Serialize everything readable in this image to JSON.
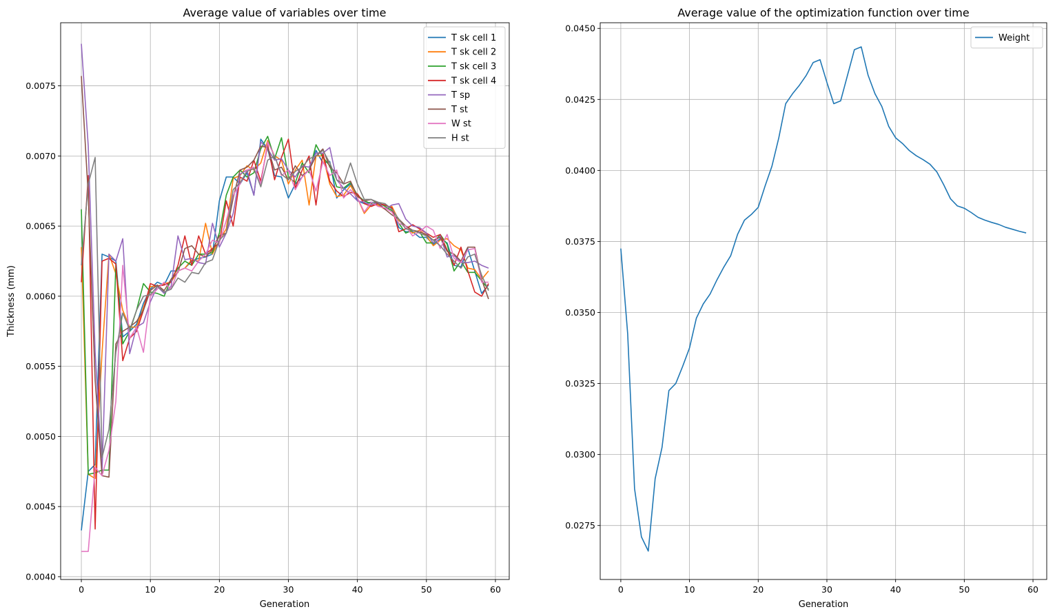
{
  "chart_data": [
    {
      "type": "line",
      "title": "Average value of variables over time",
      "xlabel": "Generation",
      "ylabel": "Thickness (mm)",
      "xlim": [
        -3,
        62
      ],
      "ylim": [
        0.00398,
        0.00795
      ],
      "xticks": [
        0,
        10,
        20,
        30,
        40,
        50,
        60
      ],
      "yticks": [
        0.004,
        0.0045,
        0.005,
        0.0055,
        0.006,
        0.0065,
        0.007,
        0.0075
      ],
      "ytick_labels": [
        "0.0040",
        "0.0045",
        "0.0050",
        "0.0055",
        "0.0060",
        "0.0065",
        "0.0070",
        "0.0075"
      ],
      "grid": true,
      "legend_position": "upper right",
      "series": [
        {
          "name": "T sk cell 1",
          "color": "#1f77b4",
          "values": [
            0.00433,
            0.00475,
            0.0048,
            0.0063,
            0.00628,
            0.00625,
            0.00571,
            0.00575,
            0.0058,
            0.00595,
            0.00605,
            0.0061,
            0.00608,
            0.00618,
            0.00618,
            0.0062,
            0.00625,
            0.00627,
            0.00628,
            0.0063,
            0.00668,
            0.00685,
            0.00685,
            0.0068,
            0.00688,
            0.00672,
            0.00712,
            0.00705,
            0.00686,
            0.00685,
            0.0067,
            0.0068,
            0.00685,
            0.0069,
            0.00704,
            0.00695,
            0.00696,
            0.0067,
            0.00676,
            0.0068,
            0.00668,
            0.00666,
            0.00667,
            0.00666,
            0.00665,
            0.00663,
            0.00649,
            0.00646,
            0.00646,
            0.00642,
            0.00642,
            0.00637,
            0.00641,
            0.00638,
            0.00622,
            0.00621,
            0.00634,
            0.00618,
            0.00602,
            0.00608
          ]
        },
        {
          "name": "T sk cell 2",
          "color": "#ff7f0e",
          "values": [
            0.00635,
            0.00473,
            0.0047,
            0.0056,
            0.0063,
            0.00616,
            0.0059,
            0.00578,
            0.00578,
            0.00592,
            0.00607,
            0.00607,
            0.00609,
            0.0061,
            0.00618,
            0.0062,
            0.00626,
            0.00625,
            0.00652,
            0.0063,
            0.0064,
            0.00648,
            0.00684,
            0.00686,
            0.00693,
            0.0069,
            0.00695,
            0.00711,
            0.007,
            0.00697,
            0.0068,
            0.0069,
            0.00697,
            0.00665,
            0.007,
            0.007,
            0.0068,
            0.00671,
            0.00672,
            0.00679,
            0.0067,
            0.00659,
            0.00665,
            0.00665,
            0.00662,
            0.00664,
            0.00654,
            0.0065,
            0.00645,
            0.00647,
            0.00643,
            0.00636,
            0.0064,
            0.00641,
            0.00636,
            0.00633,
            0.0062,
            0.00619,
            0.00612,
            0.00618
          ]
        },
        {
          "name": "T sk cell 3",
          "color": "#2ca02c",
          "values": [
            0.00662,
            0.00473,
            0.00474,
            0.00476,
            0.00476,
            0.00623,
            0.00566,
            0.00575,
            0.0059,
            0.00609,
            0.00603,
            0.00602,
            0.006,
            0.00612,
            0.0062,
            0.00625,
            0.00622,
            0.0063,
            0.0063,
            0.00631,
            0.00645,
            0.00672,
            0.00685,
            0.0069,
            0.00685,
            0.00688,
            0.00705,
            0.00714,
            0.00698,
            0.00713,
            0.00685,
            0.00681,
            0.00695,
            0.00688,
            0.00708,
            0.00699,
            0.00693,
            0.00678,
            0.00677,
            0.00681,
            0.00672,
            0.00668,
            0.00666,
            0.00667,
            0.00664,
            0.00661,
            0.00652,
            0.00645,
            0.00647,
            0.00646,
            0.00638,
            0.00638,
            0.00644,
            0.00637,
            0.00618,
            0.00625,
            0.00617,
            0.00617,
            0.00611,
            0.00605
          ]
        },
        {
          "name": "T sk cell 4",
          "color": "#d62728",
          "values": [
            0.0061,
            0.00686,
            0.00434,
            0.00625,
            0.00627,
            0.00623,
            0.00554,
            0.0057,
            0.00575,
            0.0059,
            0.00609,
            0.00607,
            0.00608,
            0.0061,
            0.00622,
            0.00643,
            0.00622,
            0.00643,
            0.0063,
            0.00634,
            0.00638,
            0.00668,
            0.0065,
            0.00685,
            0.00682,
            0.00697,
            0.00682,
            0.00708,
            0.00683,
            0.00699,
            0.00712,
            0.00677,
            0.0069,
            0.007,
            0.00665,
            0.00702,
            0.00682,
            0.00675,
            0.00671,
            0.00674,
            0.00673,
            0.00666,
            0.00664,
            0.00666,
            0.00665,
            0.00663,
            0.00646,
            0.00648,
            0.00651,
            0.00648,
            0.00645,
            0.00642,
            0.00644,
            0.00633,
            0.00622,
            0.00635,
            0.00618,
            0.00603,
            0.006,
            0.00609
          ]
        },
        {
          "name": "T sp",
          "color": "#9467bd",
          "values": [
            0.0078,
            0.00707,
            0.0056,
            0.00475,
            0.0063,
            0.00625,
            0.00641,
            0.00559,
            0.00578,
            0.00581,
            0.00596,
            0.00607,
            0.00602,
            0.00607,
            0.00643,
            0.00626,
            0.00627,
            0.00624,
            0.00623,
            0.00652,
            0.00635,
            0.00645,
            0.00659,
            0.00687,
            0.0069,
            0.00672,
            0.0071,
            0.00705,
            0.00697,
            0.00698,
            0.0069,
            0.00685,
            0.00693,
            0.00692,
            0.00702,
            0.00702,
            0.00706,
            0.00683,
            0.00677,
            0.00673,
            0.00668,
            0.00667,
            0.00665,
            0.00667,
            0.00662,
            0.00665,
            0.00666,
            0.00655,
            0.0065,
            0.00649,
            0.00645,
            0.00638,
            0.00643,
            0.00628,
            0.00629,
            0.00624,
            0.00624,
            0.00625,
            0.00622,
            0.0062
          ]
        },
        {
          "name": "T st",
          "color": "#8c564b",
          "values": [
            0.00757,
            0.00672,
            0.0054,
            0.00472,
            0.00471,
            0.00566,
            0.00575,
            0.00578,
            0.00582,
            0.0059,
            0.00604,
            0.00608,
            0.00604,
            0.00612,
            0.00617,
            0.00634,
            0.00636,
            0.0063,
            0.00628,
            0.00633,
            0.00643,
            0.00645,
            0.0067,
            0.0069,
            0.00692,
            0.00697,
            0.00707,
            0.00706,
            0.0069,
            0.00692,
            0.00683,
            0.00693,
            0.00686,
            0.0069,
            0.007,
            0.00705,
            0.00692,
            0.00688,
            0.0068,
            0.00682,
            0.00671,
            0.00668,
            0.00669,
            0.00666,
            0.00662,
            0.00658,
            0.00655,
            0.0065,
            0.00647,
            0.00646,
            0.00644,
            0.0064,
            0.00642,
            0.00632,
            0.0063,
            0.00625,
            0.00635,
            0.00635,
            0.00612,
            0.00598
          ]
        },
        {
          "name": "W st",
          "color": "#e377c2",
          "values": [
            0.00418,
            0.00418,
            0.00478,
            0.00472,
            0.0049,
            0.00525,
            0.00622,
            0.0057,
            0.00578,
            0.0056,
            0.006,
            0.00605,
            0.0061,
            0.00605,
            0.00618,
            0.0062,
            0.00618,
            0.00625,
            0.0063,
            0.0064,
            0.00638,
            0.00654,
            0.00672,
            0.0068,
            0.0069,
            0.00692,
            0.0068,
            0.0071,
            0.007,
            0.00686,
            0.0069,
            0.00676,
            0.00685,
            0.0069,
            0.00675,
            0.00696,
            0.00686,
            0.0069,
            0.0067,
            0.00676,
            0.0067,
            0.0066,
            0.00667,
            0.00664,
            0.00663,
            0.0066,
            0.00652,
            0.0065,
            0.00643,
            0.00646,
            0.0065,
            0.00647,
            0.00634,
            0.00644,
            0.00627,
            0.00624,
            0.00633,
            0.00634,
            0.0061,
            0.0061
          ]
        },
        {
          "name": "H st",
          "color": "#7f7f7f",
          "values": [
            0.00622,
            0.0068,
            0.00699,
            0.00485,
            0.00505,
            0.0056,
            0.00588,
            0.00576,
            0.0059,
            0.006,
            0.00601,
            0.00607,
            0.00603,
            0.00605,
            0.00613,
            0.0061,
            0.00617,
            0.00616,
            0.00624,
            0.00626,
            0.0064,
            0.00645,
            0.00676,
            0.00681,
            0.00689,
            0.00691,
            0.00678,
            0.00697,
            0.007,
            0.00687,
            0.00683,
            0.00689,
            0.00692,
            0.00698,
            0.007,
            0.00704,
            0.00695,
            0.00683,
            0.0068,
            0.00695,
            0.0068,
            0.00669,
            0.00669,
            0.00667,
            0.00666,
            0.00662,
            0.00655,
            0.00648,
            0.00647,
            0.00645,
            0.00643,
            0.0064,
            0.00636,
            0.0063,
            0.00625,
            0.0062,
            0.00628,
            0.0063,
            0.00615,
            0.00604
          ]
        }
      ]
    },
    {
      "type": "line",
      "title": "Average value of the optimization function over time",
      "xlabel": "Generation",
      "ylabel": "",
      "xlim": [
        -3,
        62
      ],
      "ylim": [
        0.0256,
        0.0452
      ],
      "xticks": [
        0,
        10,
        20,
        30,
        40,
        50,
        60
      ],
      "yticks": [
        0.0275,
        0.03,
        0.0325,
        0.035,
        0.0375,
        0.04,
        0.0425,
        0.045
      ],
      "ytick_labels": [
        "0.0275",
        "0.0300",
        "0.0325",
        "0.0350",
        "0.0375",
        "0.0400",
        "0.0425",
        "0.0450"
      ],
      "grid": true,
      "legend_position": "upper right",
      "series": [
        {
          "name": "Weight",
          "color": "#1f77b4",
          "values": [
            0.03725,
            0.03425,
            0.0288,
            0.0271,
            0.0266,
            0.02915,
            0.03025,
            0.03225,
            0.0325,
            0.0331,
            0.03375,
            0.0348,
            0.0353,
            0.03565,
            0.03615,
            0.0366,
            0.037,
            0.03775,
            0.03825,
            0.03845,
            0.0387,
            0.03945,
            0.04015,
            0.04115,
            0.04235,
            0.0427,
            0.043,
            0.04335,
            0.0438,
            0.0439,
            0.0431,
            0.04235,
            0.04245,
            0.04335,
            0.04425,
            0.04435,
            0.04335,
            0.0427,
            0.04225,
            0.04155,
            0.04115,
            0.04095,
            0.0407,
            0.04052,
            0.04038,
            0.04022,
            0.03995,
            0.0395,
            0.039,
            0.03875,
            0.03867,
            0.03852,
            0.03835,
            0.03825,
            0.03817,
            0.0381,
            0.038,
            0.03793,
            0.03786,
            0.0378
          ]
        }
      ]
    }
  ]
}
